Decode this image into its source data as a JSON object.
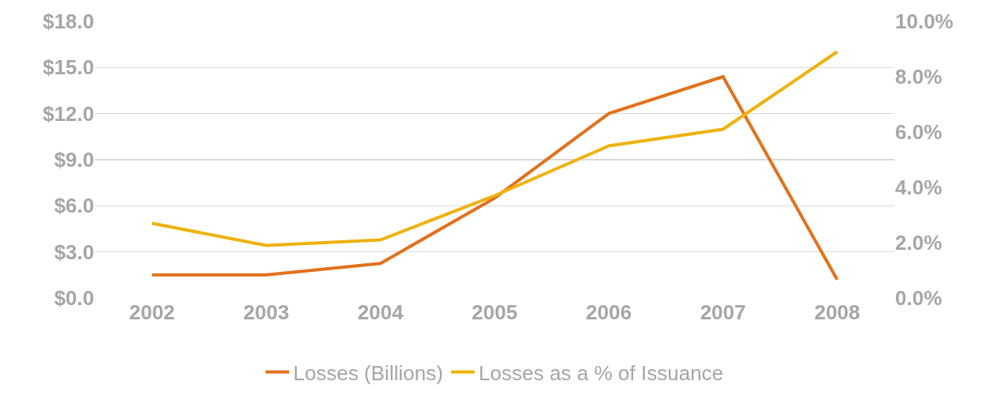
{
  "chart_data": {
    "type": "line",
    "categories": [
      "2002",
      "2003",
      "2004",
      "2005",
      "2006",
      "2007",
      "2008"
    ],
    "series": [
      {
        "name": "Losses (Billions)",
        "color": "#e2711d",
        "values": [
          1.5,
          1.5,
          2.25,
          6.5,
          12.0,
          14.4,
          1.2
        ]
      },
      {
        "name": "Losses as a % of Issuance",
        "color": "#efb10c",
        "axis": "y2",
        "values": [
          2.7,
          1.9,
          2.1,
          3.7,
          5.5,
          6.1,
          8.9
        ]
      }
    ],
    "ylim": [
      0,
      18
    ],
    "yticks": [
      {
        "value": 0,
        "label": "$0.0"
      },
      {
        "value": 3,
        "label": "$3.0"
      },
      {
        "value": 6,
        "label": "$6.0"
      },
      {
        "value": 9,
        "label": "$9.0"
      },
      {
        "value": 12,
        "label": "$12.0"
      },
      {
        "value": 15,
        "label": "$15.0"
      },
      {
        "value": 18,
        "label": "$18.0"
      }
    ],
    "y2lim": [
      0,
      10
    ],
    "y2ticks": [
      {
        "value": 0,
        "label": "0.0%"
      },
      {
        "value": 2,
        "label": "2.0%"
      },
      {
        "value": 4,
        "label": "4.0%"
      },
      {
        "value": 6,
        "label": "6.0%"
      },
      {
        "value": 8,
        "label": "8.0%"
      },
      {
        "value": 10,
        "label": "10.0%"
      }
    ],
    "grid": "y",
    "legend": "bottom",
    "marker": "none",
    "line_style": "solid"
  }
}
